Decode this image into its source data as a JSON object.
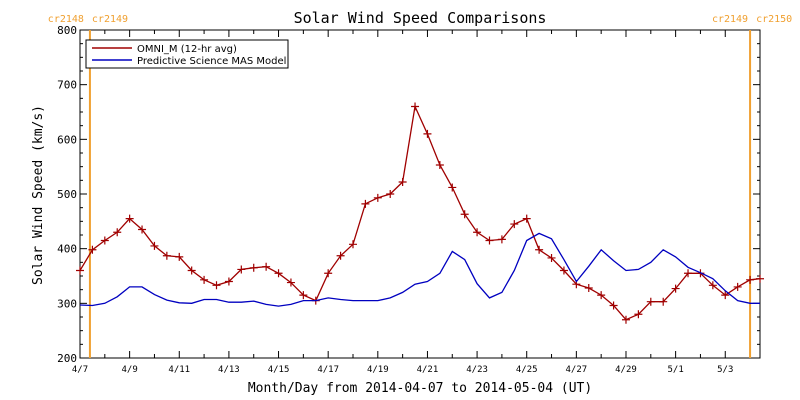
{
  "chart_data": {
    "type": "line",
    "title": "Solar Wind Speed Comparisons",
    "xlabel": "Month/Day from 2014-04-07 to 2014-05-04 (UT)",
    "ylabel": "Solar Wind Speed (km/s)",
    "ylim": [
      200,
      800
    ],
    "yticks": [
      200,
      300,
      400,
      500,
      600,
      700,
      800
    ],
    "xlim": [
      0,
      27.4
    ],
    "x_unit": "days since 2014-04-07",
    "xticks": [
      {
        "x": 0,
        "label": "4/7"
      },
      {
        "x": 2,
        "label": "4/9"
      },
      {
        "x": 4,
        "label": "4/11"
      },
      {
        "x": 6,
        "label": "4/13"
      },
      {
        "x": 8,
        "label": "4/15"
      },
      {
        "x": 10,
        "label": "4/17"
      },
      {
        "x": 12,
        "label": "4/19"
      },
      {
        "x": 14,
        "label": "4/21"
      },
      {
        "x": 16,
        "label": "4/23"
      },
      {
        "x": 18,
        "label": "4/25"
      },
      {
        "x": 20,
        "label": "4/27"
      },
      {
        "x": 22,
        "label": "4/29"
      },
      {
        "x": 24,
        "label": "5/1"
      },
      {
        "x": 26,
        "label": "5/3"
      }
    ],
    "carrington": [
      {
        "x": 0.4,
        "left_label": "cr2148",
        "right_label": "cr2149",
        "side": "left"
      },
      {
        "x": 27.0,
        "left_label": "cr2149",
        "right_label": "cr2150",
        "side": "right"
      }
    ],
    "legend_position": "top-left",
    "series": [
      {
        "name": "OMNI_M (12-hr avg)",
        "color": "#a00000",
        "markers": true,
        "x": [
          0,
          0.5,
          1,
          1.5,
          2,
          2.5,
          3,
          3.5,
          4,
          4.5,
          5,
          5.5,
          6,
          6.5,
          7,
          7.5,
          8,
          8.5,
          9,
          9.5,
          10,
          10.5,
          11,
          11.5,
          12,
          12.5,
          13,
          13.5,
          14,
          14.5,
          15,
          15.5,
          16,
          16.5,
          17,
          17.5,
          18,
          18.5,
          19,
          19.5,
          20,
          20.5,
          21,
          21.5,
          22,
          22.5,
          23,
          23.5,
          24,
          24.5,
          25,
          25.5,
          26,
          26.5,
          27,
          27.4
        ],
        "values": [
          360,
          398,
          415,
          430,
          455,
          435,
          405,
          387,
          385,
          360,
          343,
          333,
          340,
          362,
          365,
          367,
          355,
          338,
          315,
          305,
          355,
          387,
          408,
          482,
          493,
          500,
          522,
          660,
          610,
          553,
          512,
          463,
          430,
          415,
          417,
          445,
          455,
          398,
          383,
          360,
          335,
          328,
          315,
          296,
          270,
          280,
          303,
          303,
          327,
          355,
          355,
          333,
          315,
          330,
          343,
          345
        ]
      },
      {
        "name": "Predictive Science MAS Model",
        "color": "#0000c0",
        "markers": false,
        "x": [
          0,
          0.5,
          1,
          1.5,
          2,
          2.5,
          3,
          3.5,
          4,
          4.5,
          5,
          5.5,
          6,
          6.5,
          7,
          7.5,
          8,
          8.5,
          9,
          9.5,
          10,
          10.5,
          11,
          11.5,
          12,
          12.5,
          13,
          13.5,
          14,
          14.5,
          15,
          15.5,
          16,
          16.5,
          17,
          17.5,
          18,
          18.5,
          19,
          19.5,
          20,
          20.5,
          21,
          21.5,
          22,
          22.5,
          23,
          23.5,
          24,
          24.5,
          25,
          25.5,
          26,
          26.5,
          27,
          27.4
        ],
        "values": [
          297,
          296,
          300,
          312,
          330,
          330,
          316,
          306,
          301,
          300,
          307,
          307,
          302,
          302,
          304,
          298,
          295,
          298,
          305,
          305,
          310,
          307,
          305,
          305,
          305,
          310,
          320,
          335,
          340,
          355,
          395,
          380,
          336,
          310,
          320,
          360,
          415,
          428,
          418,
          380,
          340,
          368,
          398,
          378,
          360,
          362,
          375,
          398,
          385,
          366,
          356,
          345,
          323,
          305,
          300,
          300
        ]
      }
    ]
  }
}
